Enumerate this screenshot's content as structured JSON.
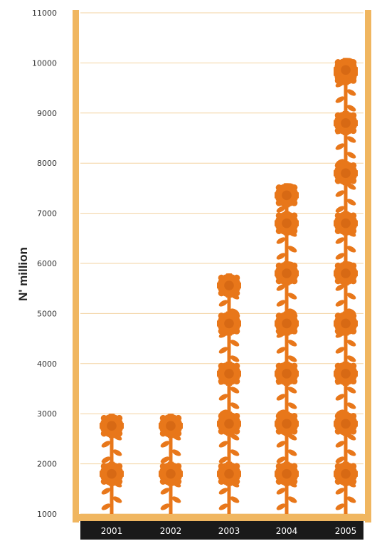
{
  "chart_data": {
    "type": "bar",
    "style": "pictogram",
    "ylabel": "N' million",
    "xlabel": "",
    "categories": [
      "2001",
      "2002",
      "2003",
      "2004",
      "2005"
    ],
    "values": [
      3000,
      3000,
      5800,
      7600,
      10100
    ],
    "ylim": [
      1000,
      11000
    ],
    "yticks": [
      1000,
      2000,
      3000,
      4000,
      5000,
      6000,
      7000,
      8000,
      9000,
      10000,
      11000
    ],
    "ytick_labels": [
      "1000",
      "2000",
      "3000",
      "4000",
      "5000",
      "6000",
      "7000",
      "8000",
      "9000",
      "10000",
      "11000"
    ],
    "grid": true,
    "colors": {
      "icon": "#e8771a",
      "frame": "#f0b660",
      "grid": "#f3d3a0",
      "axis_band": "#1a1a1a",
      "axis_text": "#ffffff"
    },
    "icon": "flower-icon"
  }
}
